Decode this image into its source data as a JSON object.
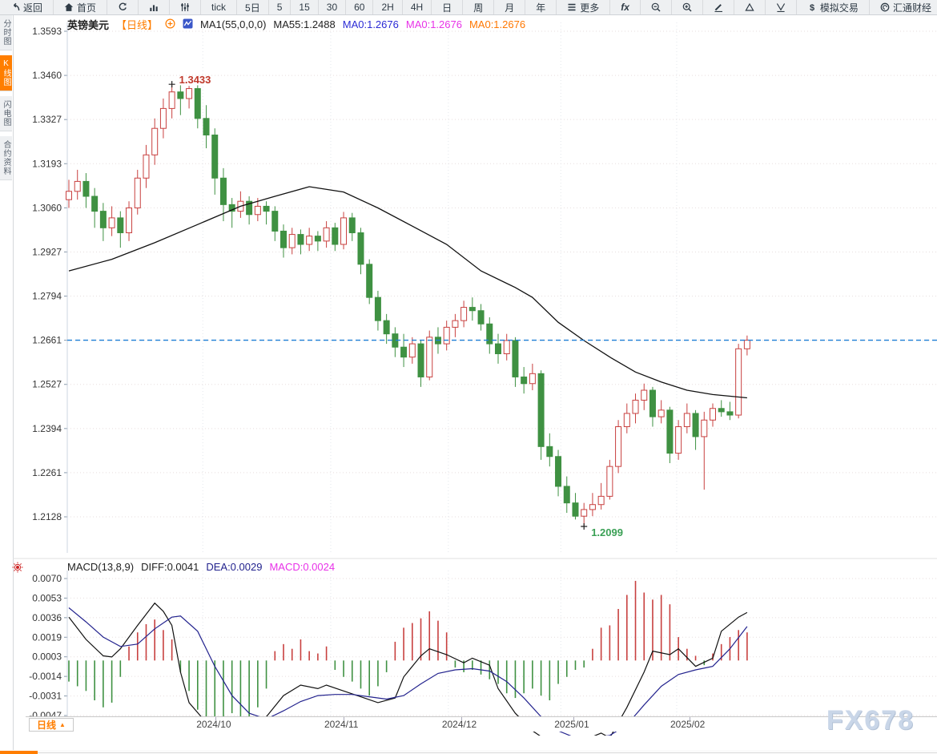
{
  "toolbar": {
    "items": [
      {
        "name": "back",
        "icon": "back-arrow-icon",
        "label": "返回"
      },
      {
        "name": "home",
        "icon": "home-icon",
        "label": "首页"
      },
      {
        "name": "refresh",
        "icon": "refresh-icon",
        "label": ""
      },
      {
        "name": "bar-chart",
        "icon": "bar-chart-icon",
        "label": ""
      },
      {
        "name": "indicators",
        "icon": "sliders-icon",
        "label": ""
      },
      {
        "name": "interval-tick",
        "label": "tick"
      },
      {
        "name": "interval-5d",
        "label": "5日"
      },
      {
        "name": "interval-5",
        "label": "5"
      },
      {
        "name": "interval-15",
        "label": "15"
      },
      {
        "name": "interval-30",
        "label": "30"
      },
      {
        "name": "interval-60",
        "label": "60"
      },
      {
        "name": "interval-2h",
        "label": "2H"
      },
      {
        "name": "interval-4h",
        "label": "4H"
      },
      {
        "name": "interval-day",
        "label": "日"
      },
      {
        "name": "interval-week",
        "label": "周"
      },
      {
        "name": "interval-month",
        "label": "月"
      },
      {
        "name": "interval-year",
        "label": "年"
      },
      {
        "name": "more",
        "icon": "menu-icon",
        "label": "更多"
      },
      {
        "name": "fx",
        "label": "fx",
        "fx": true
      },
      {
        "name": "zoom-out",
        "icon": "zoom-out-icon",
        "label": ""
      },
      {
        "name": "zoom-in",
        "icon": "zoom-in-icon",
        "label": ""
      },
      {
        "name": "draw",
        "icon": "pencil-icon",
        "label": ""
      },
      {
        "name": "marker-up",
        "icon": "triangle-up-icon",
        "label": ""
      },
      {
        "name": "marker-down",
        "icon": "triangle-down-icon",
        "label": ""
      },
      {
        "name": "demo-trade",
        "icon": "dollar-icon",
        "label": "模拟交易"
      },
      {
        "name": "huitong",
        "icon": "huitong-logo-icon",
        "label": "汇通财经"
      },
      {
        "name": "calendar",
        "label": "财经"
      }
    ]
  },
  "sidebar": {
    "tabs": [
      {
        "name": "intraday",
        "label": "分时图",
        "active": false
      },
      {
        "name": "kline",
        "label": "K线图",
        "active": true
      },
      {
        "name": "lightning",
        "label": "闪电图",
        "active": false
      },
      {
        "name": "contract-info",
        "label": "合约资料",
        "active": false
      }
    ]
  },
  "legend": {
    "symbol": "英镑美元",
    "period": "【日线】",
    "ma_settings": "MA1(55,0,0,0)",
    "ma55": "MA55:1.2488",
    "ma0_blue": "MA0:1.2676",
    "ma0_magenta": "MA0:1.2676",
    "ma0_orange": "MA0:1.2676"
  },
  "macd_legend": {
    "title": "MACD(13,8,9)",
    "diff": "DIFF:0.0041",
    "dea": "DEA:0.0029",
    "macd": "MACD:0.0024"
  },
  "bottom_bar": {
    "period_label": "日线",
    "arrow": "▲"
  },
  "watermark": "FX678",
  "colors": {
    "up": "#c8403f",
    "down": "#3f9142",
    "ma55": "#111111",
    "diff": "#111111",
    "dea": "#23238e",
    "hist_pos": "#c8403f",
    "hist_neg": "#3f9142",
    "current_line": "#1e7fd6",
    "accent": "#ff7e00",
    "high_label": "#c0392b",
    "low_label": "#3aa055",
    "grid": "#e7dede",
    "grid_v": "#e3e7ec",
    "axis_text": "#333333"
  },
  "chart_data": {
    "type": "candlestick",
    "title": "英镑美元 日线 (GBP/USD daily with MA55 and MACD)",
    "price_axis_labels": [
      "1.3593",
      "1.3460",
      "1.3327",
      "1.3193",
      "1.3060",
      "1.2927",
      "1.2794",
      "1.2661",
      "1.2527",
      "1.2394",
      "1.2261",
      "1.2128"
    ],
    "macd_axis_labels": [
      "0.0070",
      "0.0053",
      "0.0036",
      "0.0019",
      "0.0003",
      "-0.0014",
      "-0.0031",
      "-0.0047"
    ],
    "months": [
      {
        "label": "2024/10",
        "idx": 15.6
      },
      {
        "label": "2024/11",
        "idx": 30.5
      },
      {
        "label": "2024/12",
        "idx": 44.2
      },
      {
        "label": "2025/01",
        "idx": 57.3
      },
      {
        "label": "2025/02",
        "idx": 70.8
      }
    ],
    "annotations": {
      "high": {
        "idx": 12,
        "price": 1.3433,
        "text": "1.3433"
      },
      "low": {
        "idx": 60,
        "price": 1.2099,
        "text": "1.2099"
      },
      "current_price": 1.2661
    },
    "candles": [
      [
        1.3085,
        1.3145,
        1.306,
        1.311
      ],
      [
        1.311,
        1.3175,
        1.3085,
        1.314
      ],
      [
        1.314,
        1.3165,
        1.306,
        1.3095
      ],
      [
        1.3095,
        1.312,
        1.3,
        1.305
      ],
      [
        1.305,
        1.3075,
        1.296,
        1.3
      ],
      [
        1.3,
        1.3065,
        1.2975,
        1.303
      ],
      [
        1.303,
        1.305,
        1.294,
        1.2985
      ],
      [
        1.2985,
        1.308,
        1.296,
        1.306
      ],
      [
        1.306,
        1.3175,
        1.304,
        1.315
      ],
      [
        1.315,
        1.325,
        1.312,
        1.322
      ],
      [
        1.322,
        1.333,
        1.319,
        1.33
      ],
      [
        1.33,
        1.339,
        1.327,
        1.336
      ],
      [
        1.336,
        1.3433,
        1.333,
        1.341
      ],
      [
        1.341,
        1.343,
        1.334,
        1.339
      ],
      [
        1.339,
        1.3428,
        1.336,
        1.342
      ],
      [
        1.342,
        1.343,
        1.33,
        1.333
      ],
      [
        1.333,
        1.337,
        1.324,
        1.328
      ],
      [
        1.328,
        1.33,
        1.31,
        1.315
      ],
      [
        1.315,
        1.318,
        1.302,
        1.307
      ],
      [
        1.307,
        1.309,
        1.3,
        1.305
      ],
      [
        1.305,
        1.311,
        1.303,
        1.308
      ],
      [
        1.308,
        1.3095,
        1.301,
        1.304
      ],
      [
        1.304,
        1.309,
        1.302,
        1.3065
      ],
      [
        1.3065,
        1.308,
        1.301,
        1.305
      ],
      [
        1.305,
        1.3065,
        1.296,
        1.299
      ],
      [
        1.299,
        1.301,
        1.291,
        1.294
      ],
      [
        1.294,
        1.3,
        1.292,
        1.298
      ],
      [
        1.298,
        1.2995,
        1.292,
        1.295
      ],
      [
        1.295,
        1.3,
        1.293,
        1.2975
      ],
      [
        1.2975,
        1.299,
        1.293,
        1.296
      ],
      [
        1.296,
        1.302,
        1.294,
        1.3
      ],
      [
        1.3,
        1.3015,
        1.293,
        1.295
      ],
      [
        1.295,
        1.3048,
        1.2935,
        1.303
      ],
      [
        1.303,
        1.3045,
        1.296,
        1.2985
      ],
      [
        1.2985,
        1.3,
        1.286,
        1.289
      ],
      [
        1.289,
        1.2905,
        1.277,
        1.279
      ],
      [
        1.279,
        1.281,
        1.269,
        1.272
      ],
      [
        1.272,
        1.274,
        1.265,
        1.268
      ],
      [
        1.268,
        1.27,
        1.261,
        1.264
      ],
      [
        1.264,
        1.268,
        1.258,
        1.261
      ],
      [
        1.261,
        1.267,
        1.259,
        1.265
      ],
      [
        1.265,
        1.266,
        1.252,
        1.255
      ],
      [
        1.255,
        1.269,
        1.254,
        1.267
      ],
      [
        1.267,
        1.27,
        1.262,
        1.265
      ],
      [
        1.265,
        1.272,
        1.263,
        1.27
      ],
      [
        1.27,
        1.274,
        1.267,
        1.272
      ],
      [
        1.272,
        1.278,
        1.27,
        1.276
      ],
      [
        1.276,
        1.279,
        1.272,
        1.275
      ],
      [
        1.275,
        1.277,
        1.269,
        1.271
      ],
      [
        1.271,
        1.273,
        1.262,
        1.265
      ],
      [
        1.265,
        1.268,
        1.259,
        1.262
      ],
      [
        1.262,
        1.268,
        1.26,
        1.266
      ],
      [
        1.266,
        1.267,
        1.252,
        1.255
      ],
      [
        1.255,
        1.258,
        1.25,
        1.253
      ],
      [
        1.253,
        1.259,
        1.251,
        1.256
      ],
      [
        1.256,
        1.257,
        1.23,
        1.234
      ],
      [
        1.234,
        1.238,
        1.228,
        1.231
      ],
      [
        1.231,
        1.233,
        1.219,
        1.222
      ],
      [
        1.222,
        1.225,
        1.214,
        1.217
      ],
      [
        1.217,
        1.22,
        1.212,
        1.213
      ],
      [
        1.213,
        1.217,
        1.2099,
        1.215
      ],
      [
        1.215,
        1.22,
        1.213,
        1.2165
      ],
      [
        1.2165,
        1.223,
        1.215,
        1.219
      ],
      [
        1.219,
        1.23,
        1.218,
        1.228
      ],
      [
        1.228,
        1.242,
        1.226,
        1.24
      ],
      [
        1.24,
        1.247,
        1.238,
        1.244
      ],
      [
        1.244,
        1.25,
        1.241,
        1.248
      ],
      [
        1.248,
        1.253,
        1.245,
        1.251
      ],
      [
        1.251,
        1.252,
        1.24,
        1.243
      ],
      [
        1.243,
        1.248,
        1.241,
        1.245
      ],
      [
        1.245,
        1.246,
        1.229,
        1.232
      ],
      [
        1.232,
        1.242,
        1.23,
        1.24
      ],
      [
        1.24,
        1.247,
        1.238,
        1.244
      ],
      [
        1.244,
        1.245,
        1.233,
        1.237
      ],
      [
        1.237,
        1.2445,
        1.221,
        1.242
      ],
      [
        1.242,
        1.247,
        1.24,
        1.2455
      ],
      [
        1.2455,
        1.248,
        1.243,
        1.2445
      ],
      [
        1.2445,
        1.2475,
        1.242,
        1.2435
      ],
      [
        1.2435,
        1.265,
        1.2425,
        1.2635
      ],
      [
        1.2635,
        1.2675,
        1.2615,
        1.2661
      ]
    ],
    "ma55_anchors": [
      [
        0,
        1.287
      ],
      [
        5,
        1.2905
      ],
      [
        10,
        1.2955
      ],
      [
        15,
        1.301
      ],
      [
        20,
        1.3065
      ],
      [
        24,
        1.3095
      ],
      [
        28,
        1.3124
      ],
      [
        32,
        1.3108
      ],
      [
        36,
        1.306
      ],
      [
        40,
        1.3005
      ],
      [
        44,
        1.295
      ],
      [
        48,
        1.287
      ],
      [
        52,
        1.282
      ],
      [
        54,
        1.279
      ],
      [
        57,
        1.2715
      ],
      [
        60,
        1.266
      ],
      [
        63,
        1.261
      ],
      [
        66,
        1.2565
      ],
      [
        69,
        1.2535
      ],
      [
        72,
        1.251
      ],
      [
        75,
        1.2497
      ],
      [
        79,
        1.2487
      ]
    ],
    "macd": {
      "hist": [
        -0.0018,
        -0.0022,
        -0.0026,
        -0.0034,
        -0.004,
        -0.0036,
        -0.0014,
        0.0012,
        0.0024,
        0.0031,
        0.0035,
        0.0026,
        0.0018,
        -0.001,
        -0.0026,
        -0.0042,
        -0.0055,
        -0.0058,
        -0.005,
        -0.0045,
        -0.0048,
        -0.0052,
        -0.004,
        -0.0024,
        0.0008,
        0.0014,
        0.001,
        0.0018,
        0.0008,
        0.0006,
        0.0012,
        -0.0008,
        -0.0014,
        -0.0018,
        -0.0024,
        -0.003,
        -0.0022,
        -0.001,
        0.0016,
        0.0028,
        0.0032,
        0.0036,
        0.0042,
        0.0034,
        0.0024,
        -0.0006,
        -0.001,
        -0.0008,
        -0.0012,
        -0.0016,
        -0.002,
        -0.0028,
        -0.0032,
        -0.0028,
        -0.0024,
        -0.003,
        -0.0034,
        -0.002,
        -0.0014,
        -0.0008,
        -0.0006,
        0.001,
        0.0028,
        0.003,
        0.0044,
        0.0056,
        0.0068,
        0.0058,
        0.0052,
        0.0056,
        0.0048,
        0.002,
        0.001,
        0.0004,
        -0.0004,
        0.0006,
        0.0014,
        0.002,
        0.0026,
        0.0024
      ],
      "diff_anchors": [
        [
          0,
          0.0037
        ],
        [
          2,
          0.0018
        ],
        [
          4,
          0.0004
        ],
        [
          5,
          0.0003
        ],
        [
          6,
          0.001
        ],
        [
          8,
          0.003
        ],
        [
          10,
          0.0049
        ],
        [
          11,
          0.0042
        ],
        [
          12,
          0.003
        ],
        [
          13,
          -0.001
        ],
        [
          14,
          -0.0036
        ],
        [
          16,
          -0.0053
        ],
        [
          17,
          -0.0057
        ],
        [
          19,
          -0.0055
        ],
        [
          21,
          -0.0056
        ],
        [
          23,
          -0.0048
        ],
        [
          25,
          -0.003
        ],
        [
          27,
          -0.0021
        ],
        [
          29,
          -0.0024
        ],
        [
          30,
          -0.0021
        ],
        [
          32,
          -0.0026
        ],
        [
          34,
          -0.0031
        ],
        [
          36,
          -0.0036
        ],
        [
          38,
          -0.0032
        ],
        [
          39,
          -0.0014
        ],
        [
          41,
          0.0004
        ],
        [
          42,
          0.001
        ],
        [
          44,
          0.0005
        ],
        [
          46,
          -0.0002
        ],
        [
          47,
          0.0002
        ],
        [
          49,
          -0.0004
        ],
        [
          50,
          -0.0024
        ],
        [
          52,
          -0.0045
        ],
        [
          54,
          -0.006
        ],
        [
          56,
          -0.007
        ],
        [
          58,
          -0.0072
        ],
        [
          60,
          -0.0068
        ],
        [
          62,
          -0.0062
        ],
        [
          63,
          -0.0066
        ],
        [
          65,
          -0.004
        ],
        [
          67,
          -0.001
        ],
        [
          68,
          0.0008
        ],
        [
          70,
          0.0005
        ],
        [
          71,
          0.001
        ],
        [
          73,
          -0.0005
        ],
        [
          75,
          0.0002
        ],
        [
          76,
          0.0025
        ],
        [
          78,
          0.0037
        ],
        [
          79,
          0.0041
        ]
      ],
      "dea_anchors": [
        [
          0,
          0.0045
        ],
        [
          2,
          0.0033
        ],
        [
          4,
          0.002
        ],
        [
          6,
          0.0012
        ],
        [
          8,
          0.0014
        ],
        [
          10,
          0.0027
        ],
        [
          12,
          0.0037
        ],
        [
          13,
          0.0038
        ],
        [
          15,
          0.0025
        ],
        [
          17,
          -0.0005
        ],
        [
          19,
          -0.003
        ],
        [
          21,
          -0.0045
        ],
        [
          23,
          -0.005
        ],
        [
          25,
          -0.0043
        ],
        [
          27,
          -0.0035
        ],
        [
          29,
          -0.003
        ],
        [
          31,
          -0.0029
        ],
        [
          33,
          -0.0029
        ],
        [
          35,
          -0.0031
        ],
        [
          37,
          -0.0033
        ],
        [
          39,
          -0.003
        ],
        [
          41,
          -0.002
        ],
        [
          43,
          -0.0011
        ],
        [
          45,
          -0.0008
        ],
        [
          47,
          -0.0007
        ],
        [
          49,
          -0.0009
        ],
        [
          51,
          -0.0018
        ],
        [
          53,
          -0.0032
        ],
        [
          55,
          -0.0048
        ],
        [
          57,
          -0.006
        ],
        [
          59,
          -0.0066
        ],
        [
          61,
          -0.0066
        ],
        [
          63,
          -0.0064
        ],
        [
          65,
          -0.0055
        ],
        [
          67,
          -0.0038
        ],
        [
          69,
          -0.0022
        ],
        [
          71,
          -0.0012
        ],
        [
          73,
          -0.0008
        ],
        [
          75,
          -0.0005
        ],
        [
          77,
          0.001
        ],
        [
          79,
          0.0029
        ]
      ]
    }
  }
}
